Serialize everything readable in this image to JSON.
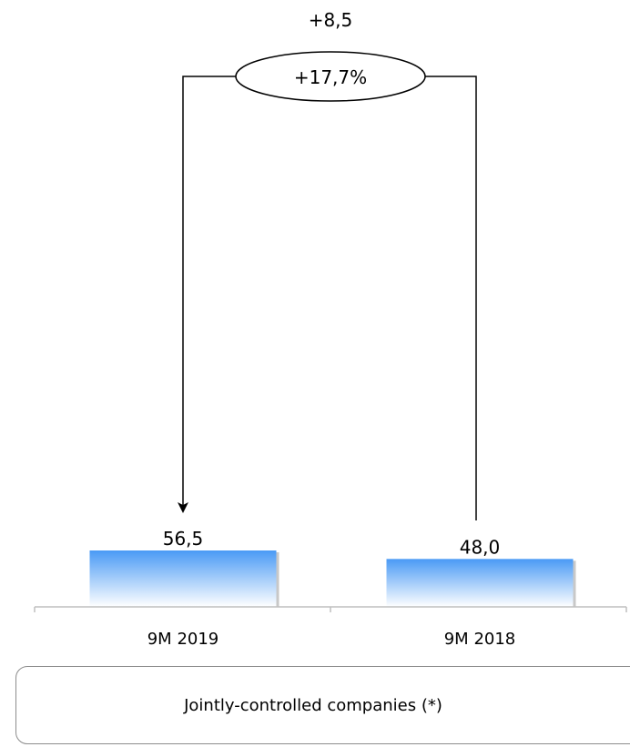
{
  "chart_data": {
    "type": "bar",
    "categories": [
      "9M 2019",
      "9M 2018"
    ],
    "values": [
      56.5,
      48.0
    ],
    "value_labels": [
      "56,5",
      "48,0"
    ],
    "ylim": [
      0,
      60
    ],
    "bar_gradient": {
      "top": "#4a9af5",
      "bottom": "#ffffff"
    },
    "bracket": {
      "difference": "+8,5",
      "percent": "+17,7%",
      "from": "9M 2018",
      "to": "9M 2019"
    },
    "title": "",
    "xlabel": "",
    "ylabel": "",
    "grid": false,
    "legend": "none"
  },
  "footer": {
    "label": "Jointly-controlled companies (*)"
  }
}
